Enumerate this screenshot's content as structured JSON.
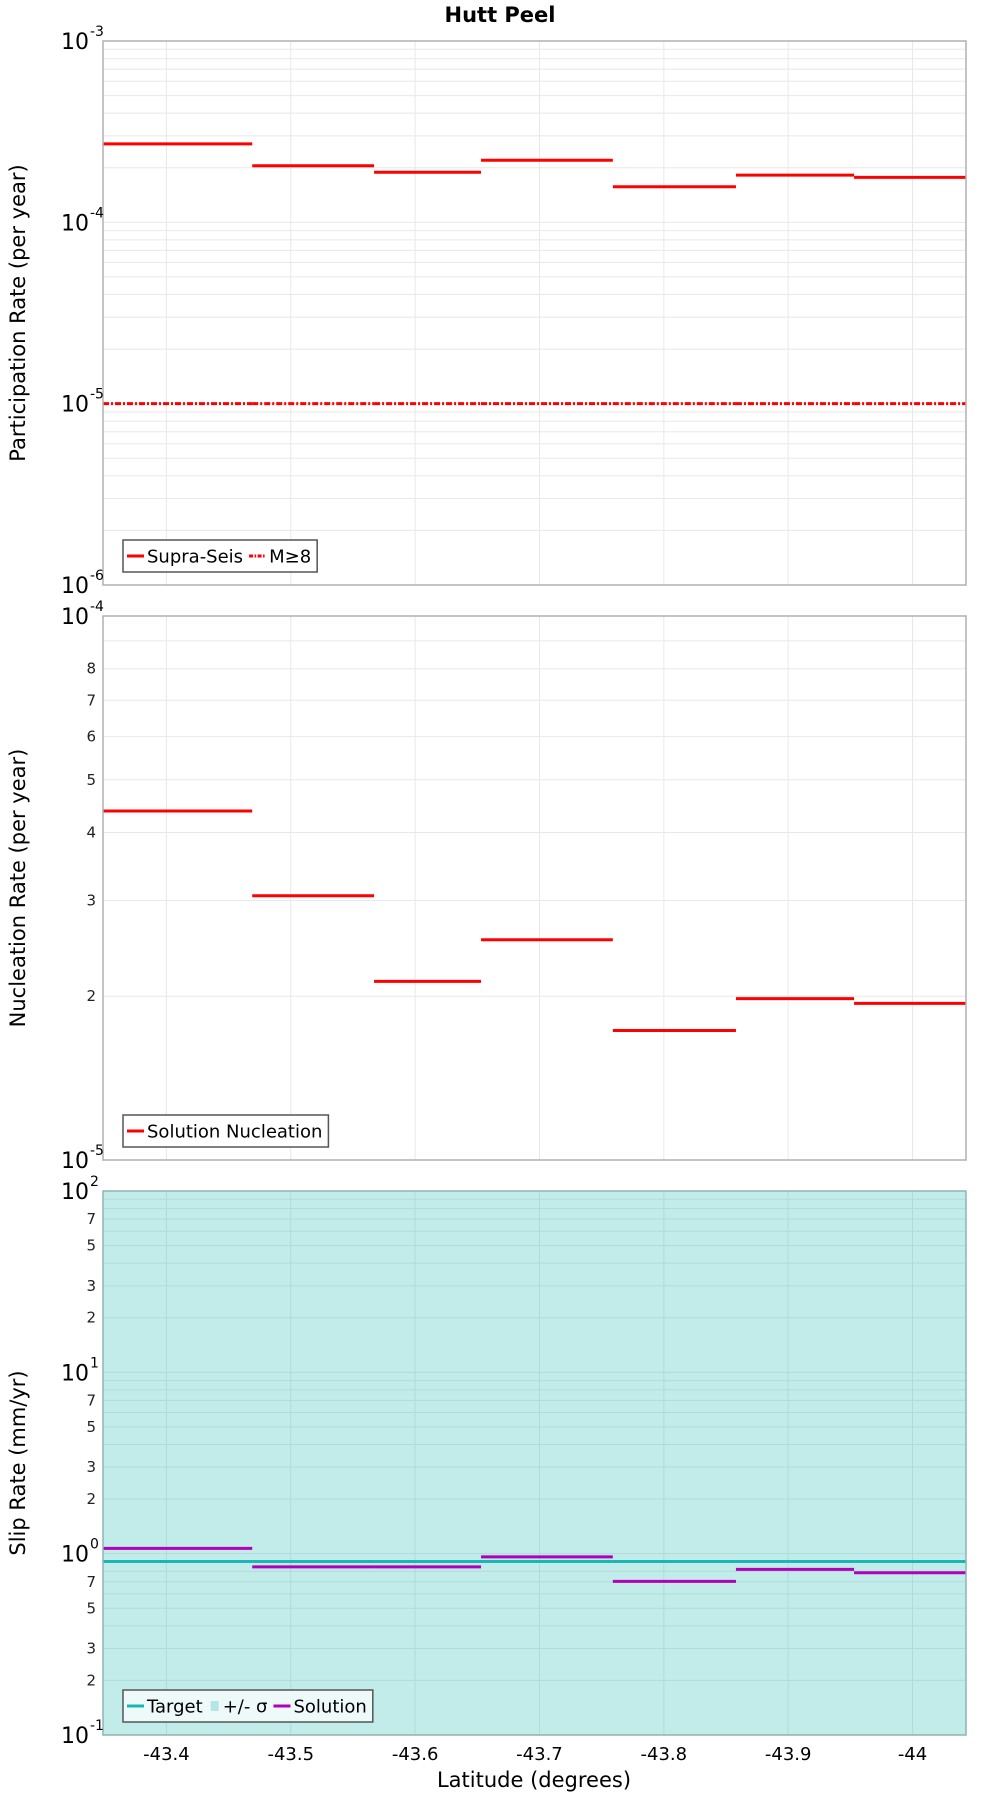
{
  "figure": {
    "title": "Hutt Peel",
    "xlabel": "Latitude (degrees)"
  },
  "chart_data": [
    {
      "type": "line",
      "subtype": "step-segments",
      "panel": "participation",
      "title": "Hutt Peel",
      "xlabel": "Latitude (degrees)",
      "ylabel": "Participation Rate (per year)",
      "yscale": "log",
      "ylim": [
        1e-06,
        0.001
      ],
      "xlim": [
        -43.349,
        -44.043
      ],
      "xticks": [
        -43.4,
        -43.5,
        -43.6,
        -43.7,
        -43.8,
        -43.9,
        -44
      ],
      "xtick_labels": [
        "-43.4",
        "-43.5",
        "-43.6",
        "-43.7",
        "-43.8",
        "-43.9",
        "-44"
      ],
      "ytick_labels": [
        {
          "value": 0.001,
          "base": "10",
          "exp": "-3"
        },
        {
          "value": 0.0001,
          "base": "10",
          "exp": "-4"
        },
        {
          "value": 1e-05,
          "base": "10",
          "exp": "-5"
        },
        {
          "value": 1e-06,
          "base": "10",
          "exp": "-6"
        }
      ],
      "grid": true,
      "background": "#ffffff",
      "bin_edges": [
        -43.349,
        -43.469,
        -43.567,
        -43.653,
        -43.759,
        -43.858,
        -43.953,
        -44.043
      ],
      "series": [
        {
          "name": "Supra-Seis",
          "color": "#ff0000",
          "style": "solid",
          "values": [
            0.000271,
            0.000205,
            0.000189,
            0.00022,
            0.000157,
            0.000182,
            0.000177
          ]
        },
        {
          "name": "M≥8",
          "color": "#ff0000",
          "style": "dashdot",
          "values": [
            1e-05,
            1e-05,
            1e-05,
            1e-05,
            1e-05,
            1e-05,
            1e-05
          ]
        }
      ],
      "legend": {
        "position": "lower left",
        "entries": [
          "Supra-Seis",
          "M≥8"
        ]
      }
    },
    {
      "type": "line",
      "subtype": "step-segments",
      "panel": "nucleation",
      "ylabel": "Nucleation Rate (per year)",
      "yscale": "log",
      "ylim": [
        1e-05,
        0.0001
      ],
      "xlim": [
        -43.349,
        -44.043
      ],
      "xticks": [
        -43.4,
        -43.5,
        -43.6,
        -43.7,
        -43.8,
        -43.9,
        -44
      ],
      "ytick_labels": [
        {
          "value": 0.0001,
          "base": "10",
          "exp": "-4"
        },
        {
          "value": 8e-05,
          "label": "8"
        },
        {
          "value": 7e-05,
          "label": "7"
        },
        {
          "value": 6e-05,
          "label": "6"
        },
        {
          "value": 5e-05,
          "label": "5"
        },
        {
          "value": 4e-05,
          "label": "4"
        },
        {
          "value": 3e-05,
          "label": "3"
        },
        {
          "value": 2e-05,
          "label": "2"
        },
        {
          "value": 1e-05,
          "base": "10",
          "exp": "-5"
        }
      ],
      "grid": true,
      "background": "#ffffff",
      "bin_edges": [
        -43.349,
        -43.469,
        -43.567,
        -43.653,
        -43.759,
        -43.858,
        -43.953,
        -44.043
      ],
      "series": [
        {
          "name": "Solution Nucleation",
          "color": "#ff0000",
          "style": "solid",
          "values": [
            4.38e-05,
            3.06e-05,
            2.13e-05,
            2.54e-05,
            1.73e-05,
            1.98e-05,
            1.94e-05
          ]
        }
      ],
      "legend": {
        "position": "lower left",
        "entries": [
          "Solution Nucleation"
        ]
      }
    },
    {
      "type": "line",
      "subtype": "step-segments",
      "panel": "slip-rate",
      "ylabel": "Slip Rate (mm/yr)",
      "yscale": "log",
      "ylim": [
        0.1,
        100
      ],
      "xlim": [
        -43.349,
        -44.043
      ],
      "xticks": [
        -43.4,
        -43.5,
        -43.6,
        -43.7,
        -43.8,
        -43.9,
        -44
      ],
      "xtick_labels": [
        "-43.4",
        "-43.5",
        "-43.6",
        "-43.7",
        "-43.8",
        "-43.9",
        "-44"
      ],
      "ytick_labels": [
        {
          "value": 100,
          "base": "10",
          "exp": "2"
        },
        {
          "value": 70,
          "label": "7"
        },
        {
          "value": 50,
          "label": "5"
        },
        {
          "value": 30,
          "label": "3"
        },
        {
          "value": 20,
          "label": "2"
        },
        {
          "value": 10,
          "base": "10",
          "exp": "1"
        },
        {
          "value": 7,
          "label": "7"
        },
        {
          "value": 5,
          "label": "5"
        },
        {
          "value": 3,
          "label": "3"
        },
        {
          "value": 2,
          "label": "2"
        },
        {
          "value": 1,
          "base": "10",
          "exp": "0"
        },
        {
          "value": 0.7,
          "label": "7"
        },
        {
          "value": 0.5,
          "label": "5"
        },
        {
          "value": 0.3,
          "label": "3"
        },
        {
          "value": 0.2,
          "label": "2"
        },
        {
          "value": 0.1,
          "base": "10",
          "exp": "-1"
        }
      ],
      "grid": true,
      "background": "#c2ecea",
      "bin_edges": [
        -43.349,
        -43.469,
        -43.567,
        -43.653,
        -43.759,
        -43.858,
        -43.953,
        -44.043
      ],
      "series": [
        {
          "name": "Target",
          "color": "#1ab5b5",
          "style": "solid",
          "values": [
            0.905,
            0.905,
            0.905,
            0.905,
            0.905,
            0.905,
            0.905
          ]
        },
        {
          "name": "+/- σ",
          "color": "#b4e6e6",
          "style": "fill",
          "lower": [
            0.1,
            0.1,
            0.1,
            0.1,
            0.1,
            0.1,
            0.1
          ],
          "upper": [
            100,
            100,
            100,
            100,
            100,
            100,
            100
          ]
        },
        {
          "name": "Solution",
          "color": "#b000b8",
          "style": "solid",
          "values": [
            1.07,
            0.845,
            0.845,
            0.96,
            0.703,
            0.819,
            0.785
          ]
        }
      ],
      "legend": {
        "position": "lower left",
        "entries": [
          "Target",
          "+/- σ",
          "Solution"
        ]
      }
    }
  ]
}
